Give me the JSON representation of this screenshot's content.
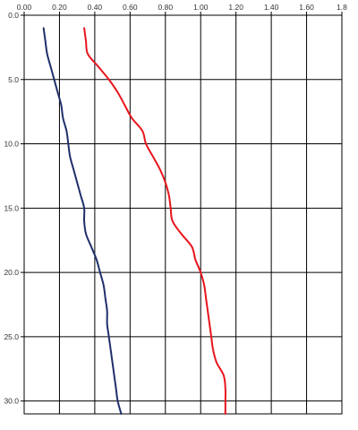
{
  "chart_data": {
    "type": "line",
    "title": "",
    "xlabel": "",
    "ylabel": "",
    "x_axis_position": "top",
    "y_axis_inverted": true,
    "xlim": [
      0,
      1.8
    ],
    "ylim": [
      0,
      31
    ],
    "x_ticks": [
      0,
      0.2,
      0.4,
      0.6,
      0.8,
      1.0,
      1.2,
      1.4,
      1.6,
      1.8
    ],
    "x_tick_labels": [
      "0.00",
      "0.20",
      "0.40",
      "0.60",
      "0.80",
      "1.00",
      "1.20",
      "1.40",
      "1.60",
      "1.8"
    ],
    "y_ticks": [
      0,
      5,
      10,
      15,
      20,
      25,
      30
    ],
    "y_tick_labels": [
      "0.0",
      "5.0",
      "10.0",
      "15.0",
      "20.0",
      "25.0",
      "30.0"
    ],
    "grid": true,
    "legend": false,
    "series": [
      {
        "color": "#1f2f6b",
        "points": [
          [
            0.11,
            1.0
          ],
          [
            0.12,
            2.0
          ],
          [
            0.13,
            3.0
          ],
          [
            0.15,
            4.0
          ],
          [
            0.17,
            5.0
          ],
          [
            0.19,
            6.0
          ],
          [
            0.21,
            7.0
          ],
          [
            0.22,
            8.0
          ],
          [
            0.24,
            9.0
          ],
          [
            0.25,
            10.0
          ],
          [
            0.26,
            11.0
          ],
          [
            0.28,
            12.0
          ],
          [
            0.3,
            13.0
          ],
          [
            0.32,
            14.0
          ],
          [
            0.34,
            15.0
          ],
          [
            0.34,
            16.0
          ],
          [
            0.35,
            17.0
          ],
          [
            0.38,
            18.0
          ],
          [
            0.41,
            19.0
          ],
          [
            0.43,
            20.0
          ],
          [
            0.45,
            21.0
          ],
          [
            0.46,
            22.0
          ],
          [
            0.47,
            23.0
          ],
          [
            0.47,
            24.0
          ],
          [
            0.48,
            25.0
          ],
          [
            0.49,
            26.0
          ],
          [
            0.5,
            27.0
          ],
          [
            0.51,
            28.0
          ],
          [
            0.52,
            29.0
          ],
          [
            0.53,
            30.0
          ],
          [
            0.55,
            31.0
          ]
        ]
      },
      {
        "color": "#e8141c",
        "points": [
          [
            0.34,
            1.0
          ],
          [
            0.35,
            2.0
          ],
          [
            0.36,
            3.0
          ],
          [
            0.42,
            4.0
          ],
          [
            0.48,
            5.0
          ],
          [
            0.53,
            6.0
          ],
          [
            0.57,
            7.0
          ],
          [
            0.61,
            8.0
          ],
          [
            0.67,
            9.0
          ],
          [
            0.69,
            10.0
          ],
          [
            0.73,
            11.0
          ],
          [
            0.77,
            12.0
          ],
          [
            0.8,
            13.0
          ],
          [
            0.82,
            14.0
          ],
          [
            0.83,
            15.0
          ],
          [
            0.84,
            16.0
          ],
          [
            0.89,
            17.0
          ],
          [
            0.95,
            18.0
          ],
          [
            0.97,
            19.0
          ],
          [
            1.0,
            20.0
          ],
          [
            1.02,
            21.0
          ],
          [
            1.03,
            22.0
          ],
          [
            1.04,
            23.0
          ],
          [
            1.05,
            24.0
          ],
          [
            1.06,
            25.0
          ],
          [
            1.07,
            26.0
          ],
          [
            1.09,
            27.0
          ],
          [
            1.13,
            28.0
          ],
          [
            1.14,
            29.0
          ],
          [
            1.14,
            30.0
          ],
          [
            1.14,
            31.0
          ]
        ]
      }
    ]
  }
}
